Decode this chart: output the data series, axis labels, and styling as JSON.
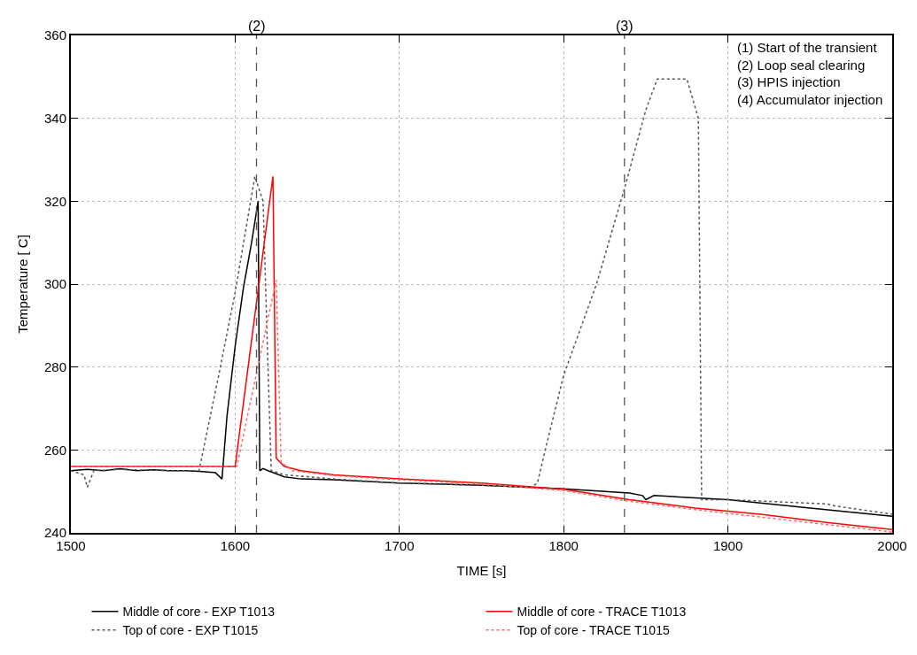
{
  "chart_data": {
    "type": "line",
    "xlabel": "TIME [s]",
    "ylabel": "Temperature [ C]",
    "xlim": [
      1500,
      2000
    ],
    "xticks": [
      1500,
      1600,
      1700,
      1800,
      1900,
      2000
    ],
    "ylim": [
      240,
      360
    ],
    "yticks": [
      240,
      260,
      280,
      300,
      320,
      340,
      360
    ],
    "grid": true,
    "legend": "bottom",
    "marker": "none",
    "series": [
      {
        "name": "Middle of core - EXP T1013",
        "color": "#000000",
        "line_style": "solid",
        "x": [
          1500,
          1510,
          1520,
          1530,
          1540,
          1550,
          1560,
          1570,
          1580,
          1588,
          1592,
          1595,
          1600,
          1605,
          1610,
          1614,
          1615,
          1617,
          1620,
          1630,
          1640,
          1660,
          1700,
          1750,
          1800,
          1840,
          1848,
          1850,
          1855,
          1900,
          1950,
          2000
        ],
        "values": [
          255,
          255.3,
          255,
          255.5,
          255,
          255.2,
          255,
          255,
          254.8,
          254.5,
          253,
          268,
          285,
          299,
          310,
          320,
          255,
          255.5,
          255,
          253.5,
          253,
          252.8,
          252,
          251.5,
          250.6,
          249.6,
          249,
          248,
          249,
          248,
          246,
          244
        ]
      },
      {
        "name": "Top of core - EXP T1015",
        "color": "#555555",
        "line_style": "dotted",
        "x": [
          1500,
          1508,
          1510,
          1514,
          1530,
          1560,
          1578,
          1590,
          1600,
          1612,
          1617,
          1620,
          1622,
          1630,
          1660,
          1700,
          1750,
          1780,
          1784,
          1790,
          1800,
          1820,
          1837,
          1850,
          1857,
          1875,
          1882,
          1884,
          1900,
          1960,
          1965,
          2000
        ],
        "values": [
          255,
          254,
          251,
          255,
          255.3,
          255,
          255,
          278,
          298,
          326,
          320,
          280,
          255,
          254,
          253,
          252,
          251.5,
          251,
          252,
          262,
          278,
          300,
          323,
          342,
          349.5,
          349.5,
          340,
          248,
          248,
          247,
          246.5,
          244.5
        ]
      },
      {
        "name": "Middle of core - TRACE T1013",
        "color": "#ff0000",
        "line_style": "solid",
        "x": [
          1500,
          1600,
          1623,
          1625,
          1630,
          1640,
          1660,
          1700,
          1750,
          1800,
          1840,
          1880,
          1920,
          1960,
          2000
        ],
        "values": [
          256,
          256,
          326,
          258,
          256,
          255,
          254,
          253,
          252,
          250.5,
          248,
          246,
          244.5,
          242.5,
          240.8
        ]
      },
      {
        "name": "Top of core - TRACE T1015",
        "color": "#ff6666",
        "line_style": "dotted",
        "x": [
          1500,
          1601,
          1625,
          1628,
          1635,
          1660,
          1700,
          1750,
          1800,
          1840,
          1880,
          1920,
          1960,
          2000
        ],
        "values": [
          256,
          256,
          301,
          257,
          255,
          253.8,
          252.8,
          251.8,
          250.2,
          247.6,
          245.6,
          243.8,
          242,
          240.2
        ]
      }
    ],
    "ref_lines": [
      {
        "axis": "x",
        "value": 1613,
        "color": "#555555",
        "line_style": "dashed"
      },
      {
        "axis": "x",
        "value": 1837,
        "color": "#555555",
        "line_style": "dashed"
      }
    ],
    "annotations": [
      {
        "text": "(2)",
        "x": 1613,
        "y": 360
      },
      {
        "text": "(3)",
        "x": 1837,
        "y": 360
      },
      "(1) Start of the transient\n(2) Loop seal clearing\n(3) HPIS injection\n(4) Accumulator injection"
    ]
  }
}
